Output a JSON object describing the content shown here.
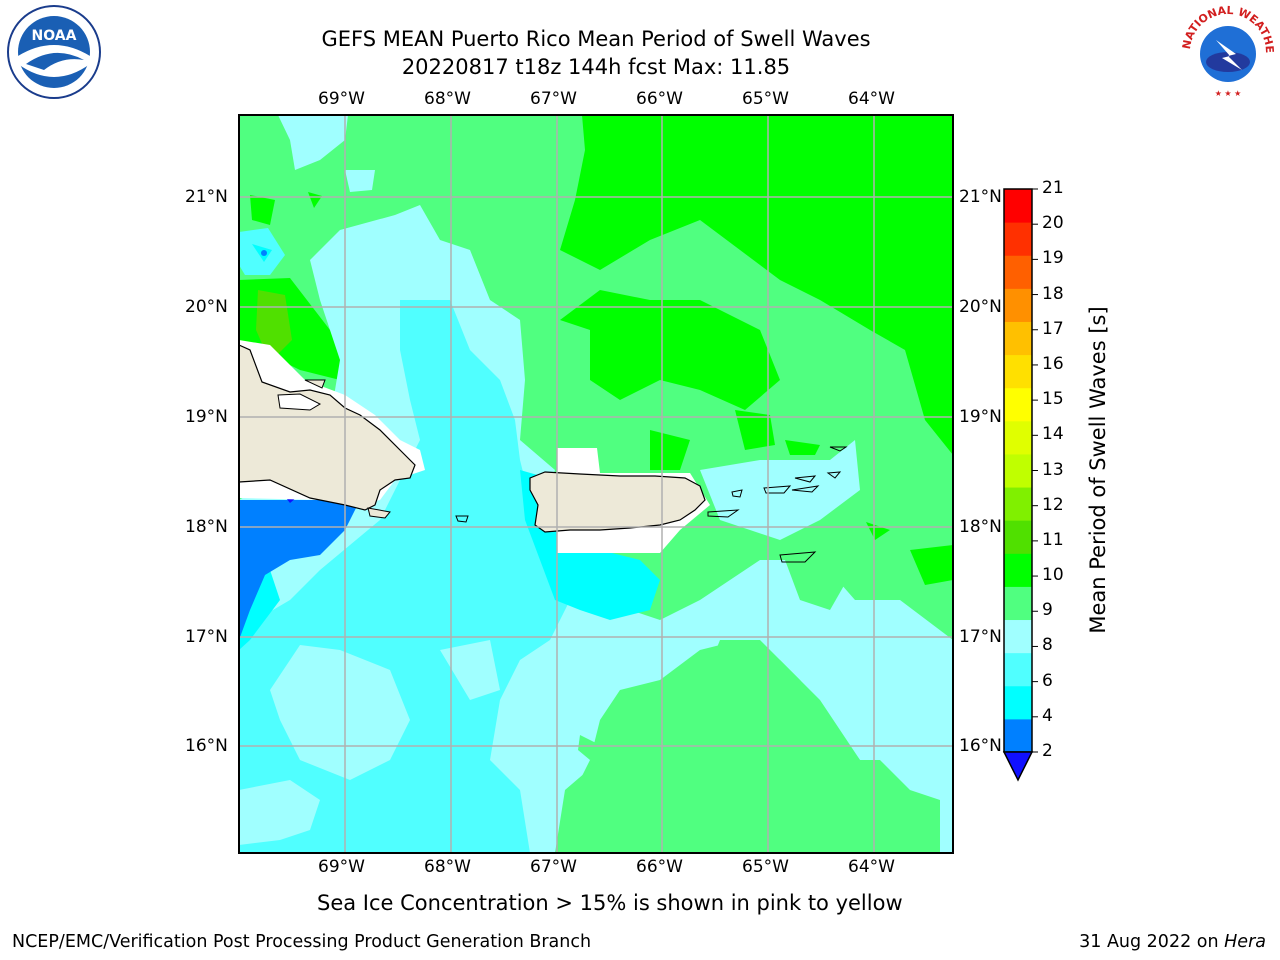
{
  "title": {
    "line1": "GEFS MEAN Puerto Rico Mean Period of Swell Waves",
    "line2": "20220817 t18z 144h fcst   Max: 11.85"
  },
  "map": {
    "lon_labels": [
      "69°W",
      "68°W",
      "67°W",
      "66°W",
      "65°W",
      "64°W"
    ],
    "lat_labels": [
      "21°N",
      "20°N",
      "19°N",
      "18°N",
      "17°N",
      "16°N"
    ],
    "land_color": "#ede9d8",
    "grid_color": "#b0b0b0"
  },
  "colorbar": {
    "label": "Mean Period of Swell Waves [s]",
    "ticks": [
      "2",
      "4",
      "6",
      "8",
      "9",
      "10",
      "11",
      "12",
      "13",
      "14",
      "15",
      "16",
      "17",
      "18",
      "19",
      "20",
      "21"
    ],
    "colors": [
      "#0080ff",
      "#00ffff",
      "#50ffff",
      "#a0ffff",
      "#50ff80",
      "#00ff00",
      "#50e000",
      "#80f000",
      "#c0ff00",
      "#e0ff00",
      "#ffff00",
      "#ffe000",
      "#ffc000",
      "#ff9000",
      "#ff6000",
      "#ff3000",
      "#ff0000"
    ],
    "under_color": "#1010ff"
  },
  "logos": {
    "noaa_text": "NOAA",
    "nws_text": "NATIONAL WEATHER SERVICE"
  },
  "sea_ice_note": "Sea Ice Concentration > 15% is shown in pink to yellow",
  "footer": {
    "left": "NCEP/EMC/Verification Post Processing Product Generation Branch",
    "right_prefix": "31 Aug 2022 on ",
    "right_host": "Hera"
  }
}
